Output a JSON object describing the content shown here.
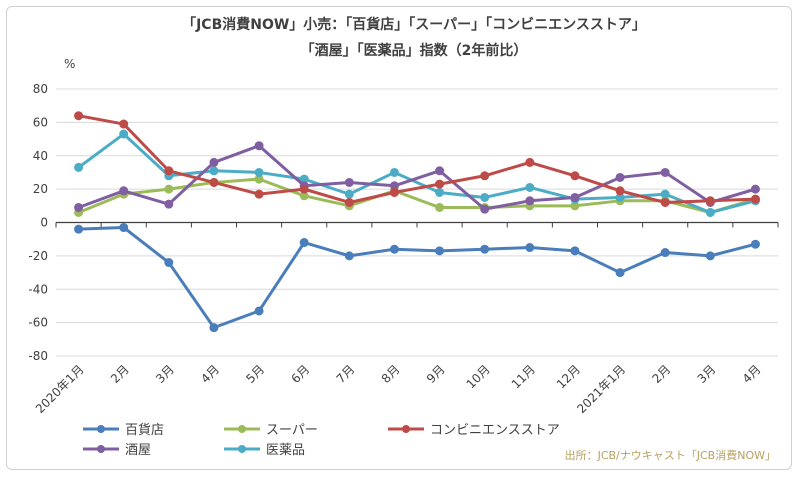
{
  "chart_data": {
    "type": "line",
    "title": "「JCB消費NOW」小売：「百貨店」「スーパー」「コンビニエンスストア」",
    "subtitle": "「酒屋」「医薬品」指数（2年前比）",
    "ylabel": "%",
    "ylim": [
      -80,
      80
    ],
    "yticks": [
      80,
      60,
      40,
      20,
      0,
      -20,
      -40,
      -60,
      -80
    ],
    "grid": true,
    "legend_position": "bottom",
    "categories": [
      "2020年1月",
      "2月",
      "3月",
      "4月",
      "5月",
      "6月",
      "7月",
      "8月",
      "9月",
      "10月",
      "11月",
      "12月",
      "2021年1月",
      "2月",
      "3月",
      "4月"
    ],
    "series": [
      {
        "name": "百貨店",
        "color": "#4a7ebb",
        "values": [
          -4,
          -3,
          -24,
          -63,
          -53,
          -12,
          -20,
          -16,
          -17,
          -16,
          -15,
          -17,
          -30,
          -18,
          -20,
          -13
        ]
      },
      {
        "name": "スーパー",
        "color": "#9bbb59",
        "values": [
          6,
          17,
          20,
          24,
          26,
          16,
          10,
          19,
          9,
          9,
          10,
          10,
          13,
          13,
          6,
          14
        ]
      },
      {
        "name": "コンビニエンスストア",
        "color": "#be4b48",
        "values": [
          64,
          59,
          31,
          24,
          17,
          20,
          12,
          18,
          23,
          28,
          36,
          28,
          19,
          12,
          13,
          14
        ]
      },
      {
        "name": "酒屋",
        "color": "#7f5fa1",
        "values": [
          9,
          19,
          11,
          36,
          46,
          22,
          24,
          22,
          31,
          8,
          13,
          15,
          27,
          30,
          12,
          20
        ]
      },
      {
        "name": "医薬品",
        "color": "#4bacc6",
        "values": [
          33,
          53,
          28,
          31,
          30,
          26,
          17,
          30,
          18,
          15,
          21,
          14,
          15,
          17,
          6,
          13
        ]
      }
    ],
    "source": "出所：JCB/ナウキャスト「JCB消費NOW」"
  }
}
